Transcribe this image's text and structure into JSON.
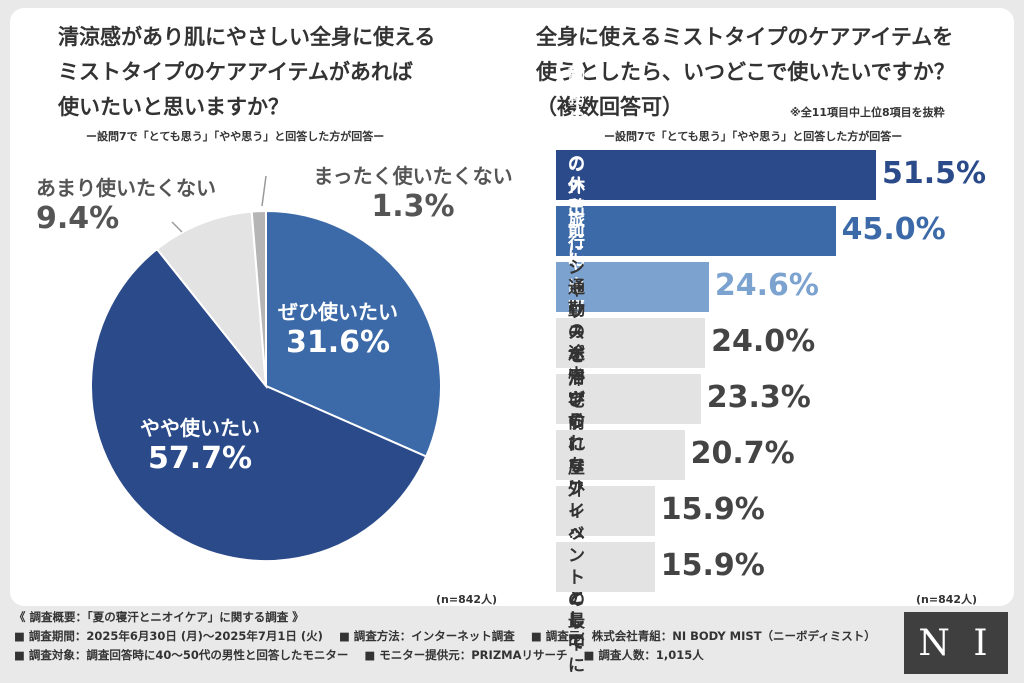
{
  "left": {
    "title": "清涼感があり肌にやさしい全身に使える\nミストタイプのケアアイテムがあれば\n使いたいと思いますか？",
    "condition": "ー設問7で「とても思う」「やや思う」と回答した方が回答ー",
    "n": "(n=842人)"
  },
  "right": {
    "title": "全身に使えるミストタイプのケアアイテムを\n使うとしたら、いつどこで使いたいですか？\n（複数回答可）",
    "note": "※全11項目中上位8項目を抜粋",
    "condition": "ー設問7で「とても思う」「やや思う」と回答した方が回答ー",
    "n": "(n=842人)"
  },
  "chart_data": [
    {
      "type": "pie",
      "slices": [
        {
          "label": "ぜひ使いたい",
          "value": 31.6,
          "display": "31.6%",
          "color": "#3c6aa8"
        },
        {
          "label": "やや使いたい",
          "value": 57.7,
          "display": "57.7%",
          "color": "#2b4a8a"
        },
        {
          "label": "あまり使いたくない",
          "value": 9.4,
          "display": "9.4%",
          "color": "#e3e3e3"
        },
        {
          "label": "まったく使いたくない",
          "value": 1.3,
          "display": "1.3%",
          "color": "#b5b5b5"
        }
      ]
    },
    {
      "type": "bar",
      "orientation": "horizontal",
      "categories": [
        "勤務先での休憩時間に",
        "朝の外出前に自宅で",
        "旅行や出張先で",
        "通勤の途中で",
        "スポーツの後に",
        "シャワーを浴びられない日に\n代用として",
        "帰宅前にリフレッシュとして",
        "屋外イベントの最中に"
      ],
      "values": [
        51.5,
        45.0,
        24.6,
        24.0,
        23.3,
        20.7,
        15.9,
        15.9
      ],
      "display": [
        "51.5%",
        "45.0%",
        "24.6%",
        "24.0%",
        "23.3%",
        "20.7%",
        "15.9%",
        "15.9%"
      ],
      "colors": [
        "#2b4a8a",
        "#3c6aa8",
        "#7ca3d0",
        "#e3e3e3",
        "#e3e3e3",
        "#e3e3e3",
        "#e3e3e3",
        "#e3e3e3"
      ]
    }
  ],
  "footer": {
    "title": "《 調査概要：「夏の寝汗とニオイケア」に関する調査 》",
    "line1": [
      "■ 調査期間：2025年6月30日 (月)～2025年7月1日 (火)",
      "■ 調査方法：インターネット調査",
      "■ 調査元：株式会社青組：NI BODY MIST（ニーボディミスト）"
    ],
    "line2": [
      "■ 調査対象：調査回答時に40～50代の男性と回答したモニター",
      "■ モニター提供元：PRIZMAリサーチ",
      "■ 調査人数：1,015人"
    ]
  },
  "logo": "N I"
}
